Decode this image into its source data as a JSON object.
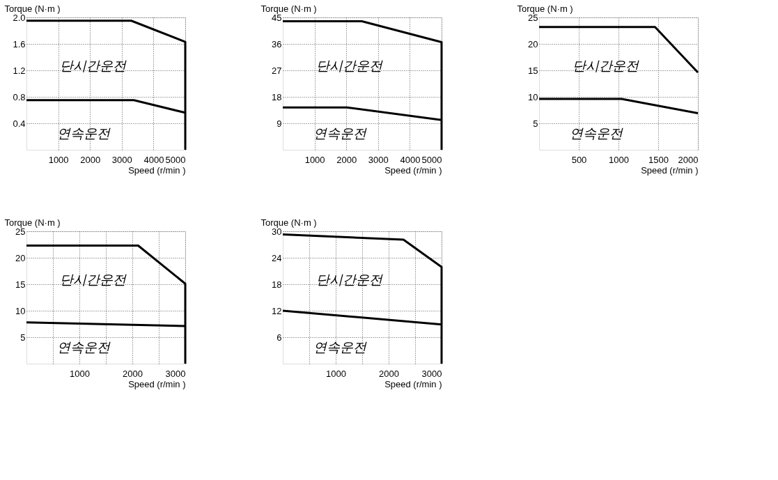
{
  "chart_data": [
    {
      "type": "line",
      "xlabel": "Speed (r/min )",
      "ylabel": "Torque (N·m )",
      "xlim": [
        0,
        5000
      ],
      "ylim": [
        0,
        2.0
      ],
      "xticks": [
        1000,
        2000,
        3000,
        4000,
        5000
      ],
      "yticks": [
        0.4,
        0.8,
        1.2,
        1.6,
        {
          "value": 2,
          "label": "2.0"
        }
      ],
      "grid": true,
      "line_style": "solid",
      "marker": "none",
      "series": [
        {
          "color": "#000000",
          "x": [
            0,
            3300,
            5000,
            5000
          ],
          "values": [
            1.95,
            1.95,
            1.63,
            0
          ]
        },
        {
          "color": "#000000",
          "x": [
            0,
            3380,
            5000
          ],
          "values": [
            0.75,
            0.75,
            0.56
          ]
        }
      ],
      "annotations": [
        "단시간운전",
        "연속운전"
      ]
    },
    {
      "type": "line",
      "xlabel": "Speed (r/min )",
      "ylabel": "Torque (N·m )",
      "xlim": [
        0,
        5000
      ],
      "ylim": [
        0,
        45
      ],
      "xticks": [
        1000,
        2000,
        3000,
        4000,
        5000
      ],
      "yticks": [
        9,
        18,
        27,
        36,
        45
      ],
      "grid": true,
      "line_style": "solid",
      "marker": "none",
      "series": [
        {
          "color": "#000000",
          "x": [
            0,
            2490,
            5000,
            5000
          ],
          "values": [
            43.7,
            43.7,
            36.6,
            0
          ]
        },
        {
          "color": "#000000",
          "x": [
            0,
            2020,
            5000
          ],
          "values": [
            14.4,
            14.4,
            10.1
          ]
        }
      ],
      "annotations": [
        "단시간운전",
        "연속운전"
      ]
    },
    {
      "type": "line",
      "xlabel": "Speed (r/min )",
      "ylabel": "Torque (N·m )",
      "xlim": [
        0,
        2000
      ],
      "ylim": [
        0,
        25
      ],
      "xticks": [
        500,
        1000,
        1500,
        2000
      ],
      "yticks": [
        5,
        10,
        15,
        20,
        25
      ],
      "grid": true,
      "line_style": "solid",
      "marker": "none",
      "series": [
        {
          "color": "#000000",
          "x": [
            0,
            1460,
            2000
          ],
          "values": [
            23.2,
            23.2,
            14.6
          ]
        },
        {
          "color": "#000000",
          "x": [
            0,
            1040,
            2000
          ],
          "values": [
            9.6,
            9.6,
            6.9
          ]
        }
      ],
      "annotations": [
        "단시간운전",
        "연속운전"
      ]
    },
    {
      "type": "line",
      "xlabel": "Speed (r/min )",
      "ylabel": "Torque (N·m )",
      "xlim": [
        0,
        3000
      ],
      "ylim": [
        0,
        25
      ],
      "xticks": [
        {
          "value": 500,
          "label": null
        },
        1000,
        {
          "value": 1500,
          "label": null
        },
        2000,
        {
          "value": 2500,
          "label": null
        },
        3000
      ],
      "yticks": [
        5,
        10,
        15,
        20,
        25
      ],
      "grid": true,
      "line_style": "solid",
      "marker": "none",
      "series": [
        {
          "color": "#000000",
          "x": [
            0,
            2110,
            3000,
            3000
          ],
          "values": [
            22.3,
            22.3,
            15.1,
            0
          ]
        },
        {
          "color": "#000000",
          "x": [
            0,
            3000
          ],
          "values": [
            7.8,
            7.1
          ]
        }
      ],
      "annotations": [
        "단시간운전",
        "연속운전"
      ]
    },
    {
      "type": "line",
      "xlabel": "Speed (r/min )",
      "ylabel": "Torque (N·m )",
      "xlim": [
        0,
        3000
      ],
      "ylim": [
        0,
        30
      ],
      "xticks": [
        {
          "value": 500,
          "label": null
        },
        1000,
        {
          "value": 1500,
          "label": null
        },
        2000,
        {
          "value": 2500,
          "label": null
        },
        3000
      ],
      "yticks": [
        6,
        12,
        18,
        24,
        30
      ],
      "grid": true,
      "line_style": "solid",
      "marker": "none",
      "series": [
        {
          "color": "#000000",
          "x": [
            0,
            2280,
            3000,
            3000
          ],
          "values": [
            29.3,
            28.1,
            21.9,
            0
          ]
        },
        {
          "color": "#000000",
          "x": [
            0,
            3000
          ],
          "values": [
            12.0,
            8.9
          ]
        }
      ],
      "annotations": [
        "단시간운전",
        "연속운전"
      ]
    }
  ]
}
